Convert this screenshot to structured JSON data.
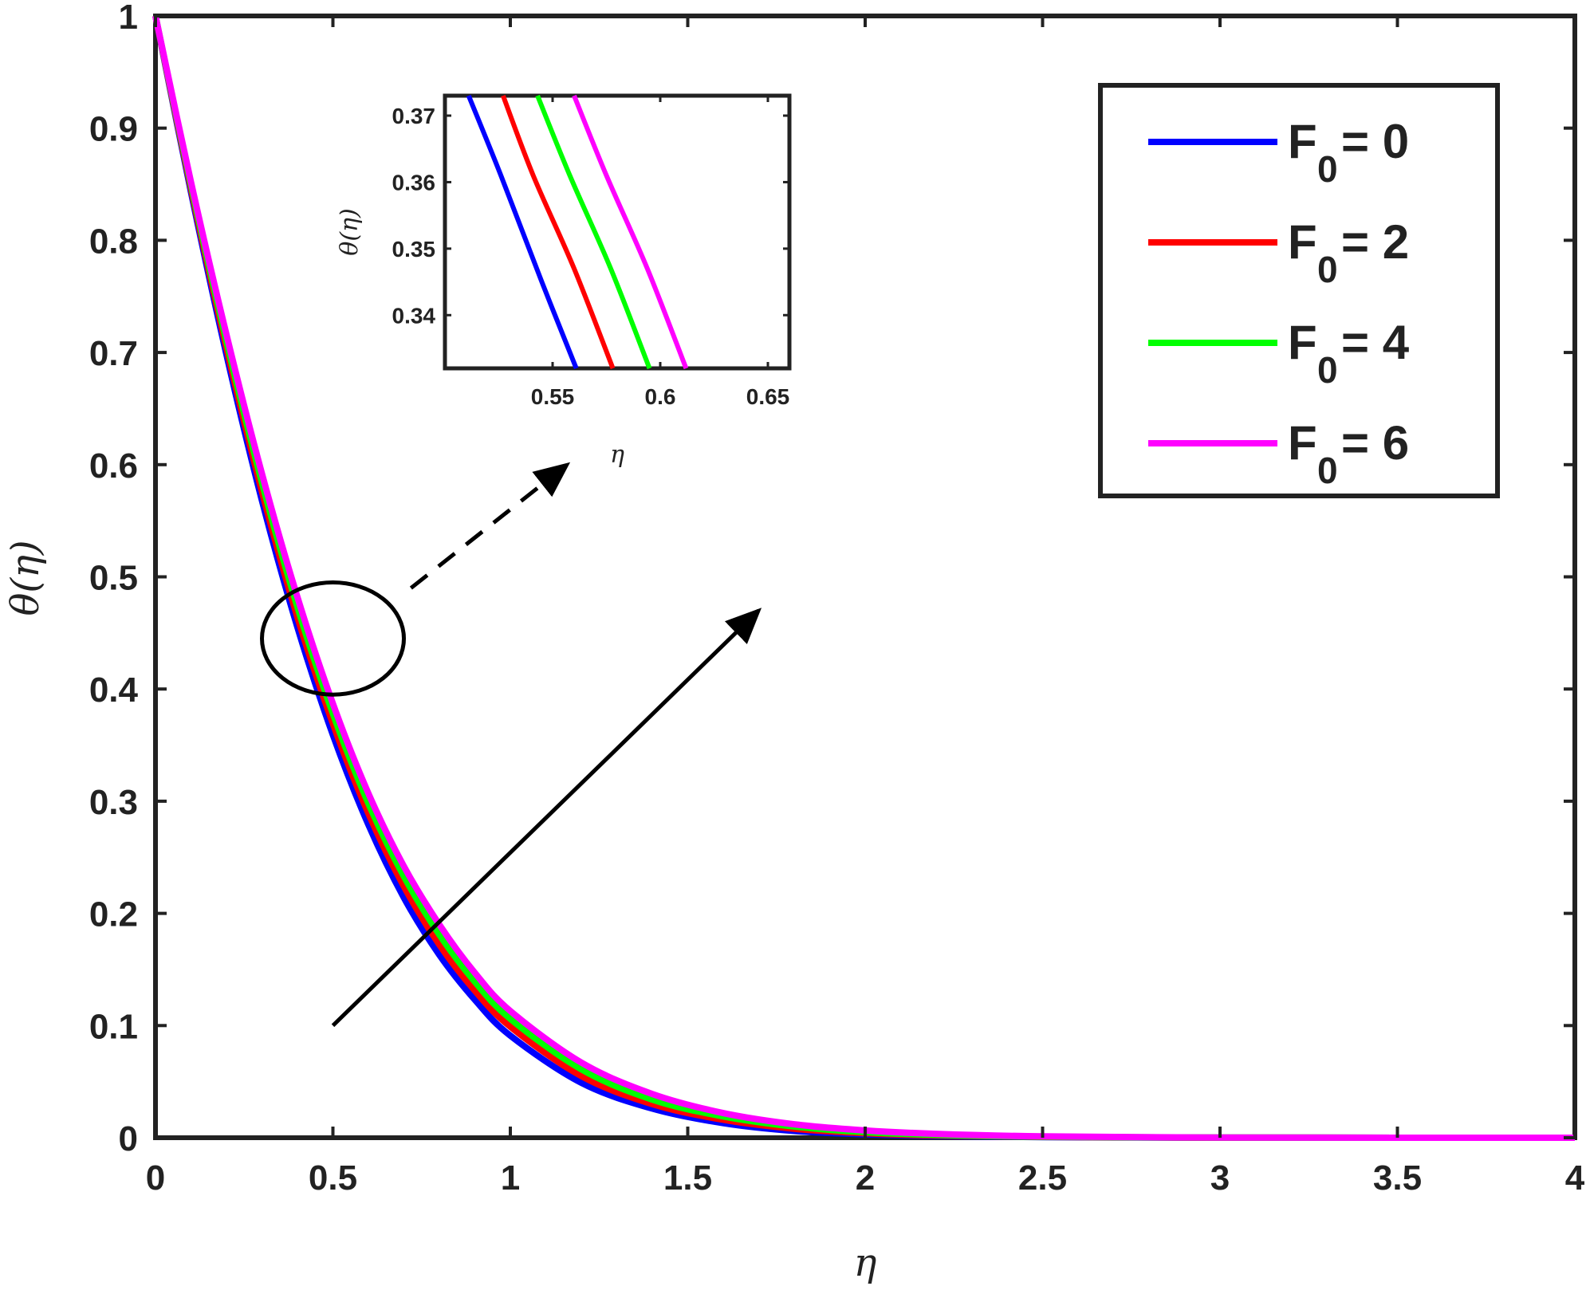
{
  "chart_data": {
    "type": "line",
    "xlabel": "η",
    "ylabel": "θ(η)",
    "xlim": [
      0,
      4
    ],
    "ylim": [
      0,
      1
    ],
    "xticks": [
      "0",
      "0.5",
      "1",
      "1.5",
      "2",
      "2.5",
      "3",
      "3.5",
      "4"
    ],
    "yticks": [
      "0",
      "0.1",
      "0.2",
      "0.3",
      "0.4",
      "0.5",
      "0.6",
      "0.7",
      "0.8",
      "0.9",
      "1"
    ],
    "grid": false,
    "legend_position": "top-right",
    "series": [
      {
        "name": "F0 = 0",
        "legend_main": "F",
        "legend_sub": "0",
        "legend_value": " = 0",
        "color": "#0000ff",
        "x": [
          0,
          0.1,
          0.2,
          0.3,
          0.4,
          0.5,
          0.6,
          0.7,
          0.8,
          0.9,
          1.0,
          1.2,
          1.4,
          1.6,
          1.8,
          2.0,
          2.2,
          2.5,
          3.0,
          3.5,
          4.0
        ],
        "y": [
          1.0,
          0.843,
          0.698,
          0.568,
          0.455,
          0.359,
          0.279,
          0.214,
          0.163,
          0.123,
          0.091,
          0.049,
          0.026,
          0.013,
          0.006,
          0.003,
          0.0015,
          0.0005,
          0.0001,
          0.0,
          0.0
        ]
      },
      {
        "name": "F0 = 2",
        "legend_main": "F",
        "legend_sub": "0",
        "legend_value": " = 2",
        "color": "#ff0000",
        "x": [
          0,
          0.1,
          0.2,
          0.3,
          0.4,
          0.5,
          0.6,
          0.7,
          0.8,
          0.9,
          1.0,
          1.2,
          1.4,
          1.6,
          1.8,
          2.0,
          2.2,
          2.5,
          3.0,
          3.5,
          4.0
        ],
        "y": [
          1.0,
          0.846,
          0.704,
          0.576,
          0.464,
          0.369,
          0.289,
          0.224,
          0.172,
          0.131,
          0.099,
          0.055,
          0.03,
          0.016,
          0.008,
          0.004,
          0.002,
          0.0007,
          0.0001,
          0.0,
          0.0
        ]
      },
      {
        "name": "F0 = 4",
        "legend_main": "F",
        "legend_sub": "0",
        "legend_value": " = 4",
        "color": "#00ff00",
        "x": [
          0,
          0.1,
          0.2,
          0.3,
          0.4,
          0.5,
          0.6,
          0.7,
          0.8,
          0.9,
          1.0,
          1.2,
          1.4,
          1.6,
          1.8,
          2.0,
          2.2,
          2.5,
          3.0,
          3.5,
          4.0
        ],
        "y": [
          1.0,
          0.849,
          0.71,
          0.584,
          0.473,
          0.378,
          0.298,
          0.233,
          0.181,
          0.139,
          0.106,
          0.061,
          0.034,
          0.019,
          0.01,
          0.005,
          0.0026,
          0.0009,
          0.0002,
          0.0,
          0.0
        ]
      },
      {
        "name": "F0 = 6",
        "legend_main": "F",
        "legend_sub": "0",
        "legend_value": " = 6",
        "color": "#ff00ff",
        "x": [
          0,
          0.1,
          0.2,
          0.3,
          0.4,
          0.5,
          0.6,
          0.7,
          0.8,
          0.9,
          1.0,
          1.2,
          1.4,
          1.6,
          1.8,
          2.0,
          2.2,
          2.5,
          3.0,
          3.5,
          4.0
        ],
        "y": [
          1.0,
          0.852,
          0.716,
          0.592,
          0.482,
          0.387,
          0.307,
          0.242,
          0.19,
          0.147,
          0.113,
          0.067,
          0.039,
          0.022,
          0.012,
          0.0065,
          0.0035,
          0.0012,
          0.0002,
          0.0,
          0.0
        ]
      }
    ],
    "inset": {
      "xlabel": "η",
      "ylabel": "θ(η)",
      "xlim": [
        0.5,
        0.66
      ],
      "ylim": [
        0.332,
        0.373
      ],
      "xticks": [
        "0.55",
        "0.6",
        "0.65"
      ],
      "yticks": [
        "0.34",
        "0.35",
        "0.36",
        "0.37"
      ],
      "series": [
        {
          "name": "F0 = 0",
          "color": "#0000ff",
          "x": [
            0.511,
            0.526,
            0.545,
            0.561
          ],
          "y": [
            0.373,
            0.361,
            0.345,
            0.332
          ]
        },
        {
          "name": "F0 = 2",
          "color": "#ff0000",
          "x": [
            0.527,
            0.541,
            0.56,
            0.578
          ],
          "y": [
            0.373,
            0.361,
            0.347,
            0.332
          ]
        },
        {
          "name": "F0 = 4",
          "color": "#00ff00",
          "x": [
            0.543,
            0.558,
            0.577,
            0.595
          ],
          "y": [
            0.373,
            0.361,
            0.347,
            0.332
          ]
        },
        {
          "name": "F0 = 6",
          "color": "#ff00ff",
          "x": [
            0.56,
            0.575,
            0.594,
            0.612
          ],
          "y": [
            0.373,
            0.361,
            0.347,
            0.332
          ]
        }
      ]
    },
    "annotations": [
      {
        "type": "ellipse",
        "cx": 0.5,
        "cy": 0.445,
        "rx": 0.2,
        "ry": 0.05
      },
      {
        "type": "dashed-arrow",
        "from": [
          0.72,
          0.49
        ],
        "to": [
          1.16,
          0.6
        ],
        "points_to": "inset"
      },
      {
        "type": "arrow",
        "from": [
          0.5,
          0.1
        ],
        "to": [
          1.7,
          0.47
        ],
        "meaning": "increasing F0"
      }
    ]
  }
}
